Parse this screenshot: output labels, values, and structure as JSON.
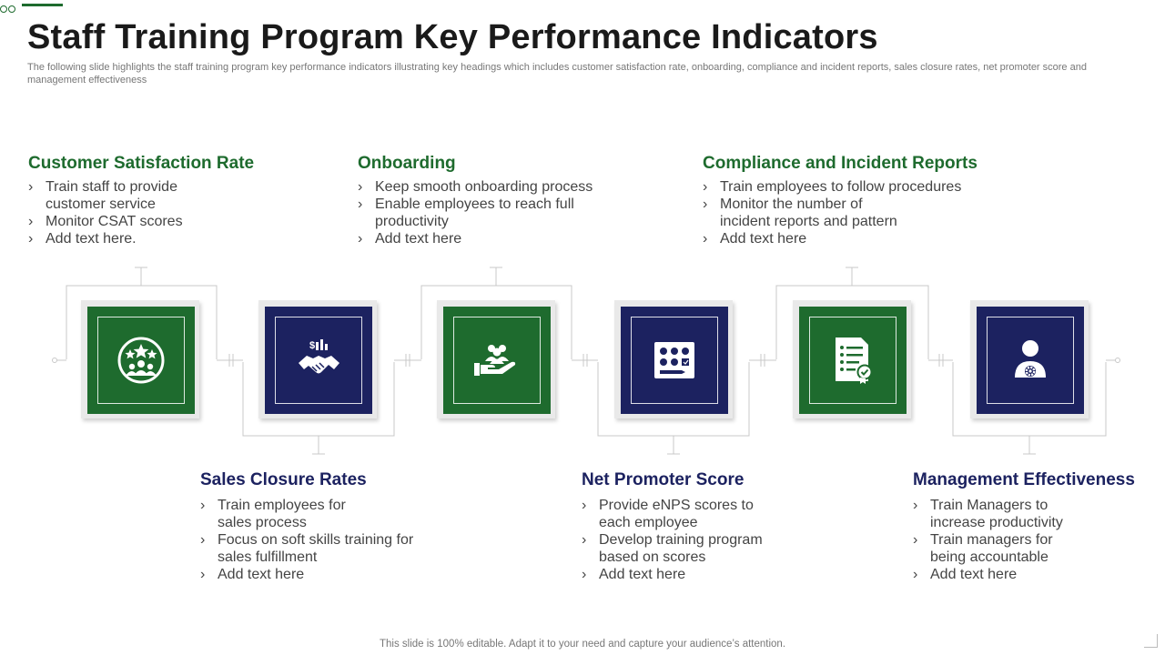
{
  "slide": {
    "title": "Staff Training Program Key Performance Indicators",
    "subtitle": "The following slide highlights the staff training program key performance indicators illustrating key headings which includes customer satisfaction rate, onboarding, compliance and incident reports, sales closure rates, net promoter score and management effectiveness",
    "footer": "This slide is 100% editable. Adapt it to your need and capture your audience’s attention."
  },
  "colors": {
    "green": "#1e6b2e",
    "navy": "#1c2260",
    "gray_text": "#777777"
  },
  "kpis": [
    {
      "heading": "Customer Satisfaction Rate",
      "color": "green",
      "icon": "customer-rating-icon",
      "bullets": [
        "Train staff to provide\ncustomer service",
        "Monitor CSAT scores",
        "Add text here."
      ]
    },
    {
      "heading": "Sales Closure Rates",
      "color": "navy",
      "icon": "handshake-deal-icon",
      "bullets": [
        "Train employees for\n sales process",
        "Focus on soft skills training for\nsales fulfillment",
        "Add text here"
      ]
    },
    {
      "heading": "Onboarding",
      "color": "green",
      "icon": "team-in-hand-icon",
      "bullets": [
        "Keep smooth onboarding process",
        "Enable employees to reach full\nproductivity",
        "Add text here"
      ]
    },
    {
      "heading": "Net Promoter Score",
      "color": "navy",
      "icon": "feedback-form-icon",
      "bullets": [
        "Provide eNPS scores to\neach employee",
        "Develop training program\nbased on scores",
        "Add text here"
      ]
    },
    {
      "heading": "Compliance and Incident Reports",
      "color": "green",
      "icon": "checklist-certificate-icon",
      "bullets": [
        "Train employees to follow procedures",
        "Monitor the number of\nincident reports and pattern",
        "Add text here"
      ]
    },
    {
      "heading": "Management Effectiveness",
      "color": "navy",
      "icon": "manager-settings-icon",
      "bullets": [
        "Train Managers to\n increase productivity",
        "Train managers for\n being accountable",
        "Add text here"
      ]
    }
  ]
}
